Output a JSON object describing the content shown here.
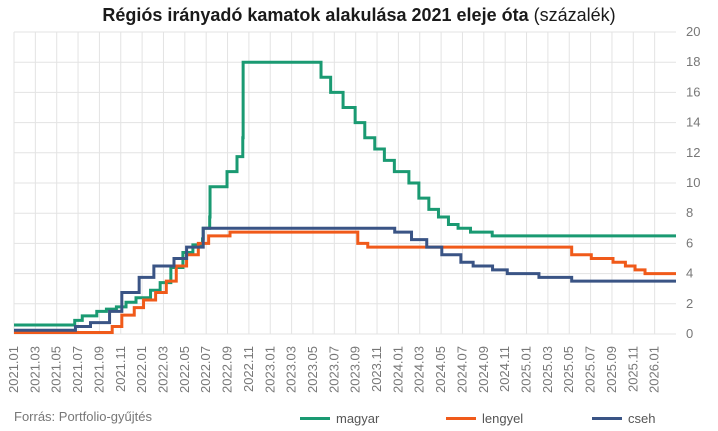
{
  "chart_data": {
    "type": "line",
    "title": "Régiós irányadó kamatok alakulása 2021 eleje óta",
    "subtitle": "(százalék)",
    "source": "Forrás: Portfolio-gyűjtés",
    "x_ticks": [
      "2021.01",
      "2021.03",
      "2021.05",
      "2021.07",
      "2021.09",
      "2021.11",
      "2022.01",
      "2022.03",
      "2022.05",
      "2022.07",
      "2022.09",
      "2022.11",
      "2023.01",
      "2023.03",
      "2023.05",
      "2023.07",
      "2023.09",
      "2023.11",
      "2024.01",
      "2024.03",
      "2024.05",
      "2024.07",
      "2024.09",
      "2024.11",
      "2025.01",
      "2025.03",
      "2025.05",
      "2025.07",
      "2025.09",
      "2025.11",
      "2026.01"
    ],
    "x_range": [
      "2021.01",
      "2026.03"
    ],
    "y_ticks": [
      0,
      2,
      4,
      6,
      8,
      10,
      12,
      14,
      16,
      18,
      20
    ],
    "ylim": [
      0,
      20
    ],
    "grid": true,
    "legend_position": "bottom",
    "series": [
      {
        "name": "magyar",
        "color": "#1a9a72",
        "step": true,
        "points": [
          [
            "2021.01",
            0.6
          ],
          [
            "2021.06.22",
            0.9
          ],
          [
            "2021.07.13",
            1.2
          ],
          [
            "2021.08.24",
            1.5
          ],
          [
            "2021.09.21",
            1.65
          ],
          [
            "2021.10.19",
            1.8
          ],
          [
            "2021.11.16",
            2.1
          ],
          [
            "2021.12.14",
            2.4
          ],
          [
            "2022.01.25",
            2.9
          ],
          [
            "2022.02.22",
            3.4
          ],
          [
            "2022.03.22",
            4.4
          ],
          [
            "2022.04.26",
            5.4
          ],
          [
            "2022.05.24",
            5.9
          ],
          [
            "2022.06.21",
            6.3
          ],
          [
            "2022.06.23",
            7.0
          ],
          [
            "2022.07.11",
            7.75
          ],
          [
            "2022.07.12",
            9.75
          ],
          [
            "2022.08.30",
            10.75
          ],
          [
            "2022.09.28",
            11.75
          ],
          [
            "2022.10.14",
            13.0
          ],
          [
            "2022.10.15",
            18.0
          ],
          [
            "2023.05.24",
            17.0
          ],
          [
            "2023.06.21",
            16.0
          ],
          [
            "2023.07.26",
            15.0
          ],
          [
            "2023.08.30",
            14.0
          ],
          [
            "2023.09.27",
            13.0
          ],
          [
            "2023.10.25",
            12.25
          ],
          [
            "2023.11.22",
            11.5
          ],
          [
            "2023.12.20",
            10.75
          ],
          [
            "2024.01.31",
            10.0
          ],
          [
            "2024.02.29",
            9.0
          ],
          [
            "2024.03.27",
            8.25
          ],
          [
            "2024.04.24",
            7.75
          ],
          [
            "2024.05.22",
            7.25
          ],
          [
            "2024.06.19",
            7.0
          ],
          [
            "2024.07.24",
            6.75
          ],
          [
            "2024.09.25",
            6.5
          ],
          [
            "2026.03",
            6.5
          ]
        ]
      },
      {
        "name": "lengyel",
        "color": "#f05a1a",
        "step": true,
        "points": [
          [
            "2021.01",
            0.1
          ],
          [
            "2021.10.07",
            0.5
          ],
          [
            "2021.11.04",
            1.25
          ],
          [
            "2021.12.09",
            1.75
          ],
          [
            "2022.01.05",
            2.25
          ],
          [
            "2022.02.09",
            2.75
          ],
          [
            "2022.03.09",
            3.5
          ],
          [
            "2022.04.07",
            4.5
          ],
          [
            "2022.05.06",
            5.25
          ],
          [
            "2022.06.09",
            6.0
          ],
          [
            "2022.07.08",
            6.5
          ],
          [
            "2022.09.08",
            6.75
          ],
          [
            "2023.09.07",
            6.0
          ],
          [
            "2023.10.05",
            5.75
          ],
          [
            "2025.05.08",
            5.25
          ],
          [
            "2025.07.03",
            5.0
          ],
          [
            "2025.09.04",
            4.75
          ],
          [
            "2025.10.09",
            4.5
          ],
          [
            "2025.11.06",
            4.25
          ],
          [
            "2025.12.04",
            4.0
          ],
          [
            "2026.03",
            4.0
          ]
        ]
      },
      {
        "name": "cseh",
        "color": "#3a5485",
        "step": true,
        "points": [
          [
            "2021.01",
            0.25
          ],
          [
            "2021.06.24",
            0.5
          ],
          [
            "2021.08.06",
            0.75
          ],
          [
            "2021.09.30",
            1.5
          ],
          [
            "2021.11.04",
            2.75
          ],
          [
            "2021.12.23",
            3.75
          ],
          [
            "2022.02.04",
            4.5
          ],
          [
            "2022.03.31",
            5.0
          ],
          [
            "2022.05.06",
            5.75
          ],
          [
            "2022.06.23",
            7.0
          ],
          [
            "2023.12.21",
            6.75
          ],
          [
            "2024.02.08",
            6.25
          ],
          [
            "2024.03.21",
            5.75
          ],
          [
            "2024.05.03",
            5.25
          ],
          [
            "2024.06.27",
            4.75
          ],
          [
            "2024.08.01",
            4.5
          ],
          [
            "2024.09.26",
            4.25
          ],
          [
            "2024.11.07",
            4.0
          ],
          [
            "2025.02.06",
            3.75
          ],
          [
            "2025.05.08",
            3.5
          ],
          [
            "2026.03",
            3.5
          ]
        ]
      }
    ]
  }
}
